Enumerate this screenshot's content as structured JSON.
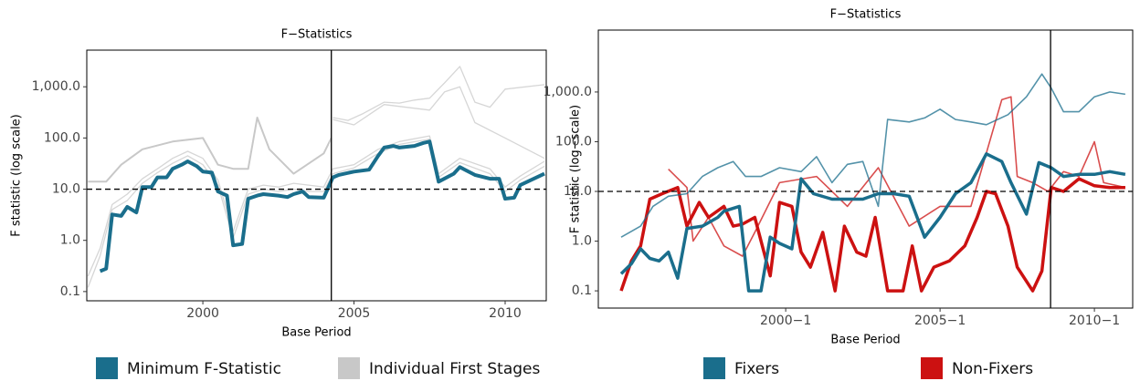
{
  "chart_data": [
    {
      "type": "line",
      "title": "F−Statistics",
      "xlabel": "Base Period",
      "ylabel": "F statistic (log scale)",
      "log_y": true,
      "xlim": [
        1996.16,
        2011.36
      ],
      "ylim": [
        0.066,
        5200
      ],
      "xticks": [
        2000,
        2005,
        2010
      ],
      "yticks": [
        0.1,
        {
          "value": 1,
          "label": "1.0"
        },
        {
          "value": 10,
          "label": "10.0"
        },
        {
          "value": 100,
          "label": "100.0"
        },
        {
          "value": 1000,
          "label": "1,000.0"
        }
      ],
      "vline": 2004.25,
      "hline": 10,
      "series": [
        {
          "name": "Minimum F-Statistic",
          "color": "#1a6e8c",
          "width": 4,
          "lines": [
            {
              "x": [
                1996.6,
                1996.8,
                1997.0,
                1997.3,
                1997.5,
                1997.8,
                1998.0,
                1998.3,
                1998.5,
                1998.8,
                1999.0,
                1999.3,
                1999.5,
                1999.8,
                2000.0,
                2000.3,
                2000.5,
                2000.8,
                2001.0,
                2001.3,
                2001.5,
                2001.8,
                2002.0,
                2002.5,
                2002.8,
                2003.0,
                2003.3,
                2003.5,
                2004.0,
                2004.3,
                2004.5,
                2005.0,
                2005.5,
                2005.8,
                2006.0,
                2006.3,
                2006.5,
                2007.0,
                2007.3,
                2007.5,
                2007.8,
                2008.3,
                2008.5,
                2009.0,
                2009.5,
                2009.8,
                2010.0,
                2010.3,
                2010.5,
                2011.3
              ],
              "values": [
                0.25,
                0.28,
                3.2,
                3.0,
                4.5,
                3.5,
                11,
                11,
                17,
                17,
                25,
                30,
                35,
                28,
                22,
                21,
                9,
                7.5,
                0.8,
                0.85,
                6.5,
                7.5,
                8,
                7.5,
                7,
                8,
                9,
                7,
                6.8,
                17,
                19,
                22,
                24,
                45,
                65,
                70,
                65,
                70,
                80,
                85,
                14,
                20,
                27,
                19,
                16,
                16,
                6.5,
                6.8,
                12,
                20
              ]
            }
          ]
        },
        {
          "name": "Individual First Stages",
          "color": "#c8c8c8",
          "width": 2,
          "lines": [
            {
              "x": [
                1996.2,
                1996.8,
                1997.3,
                1998.0,
                1999.0,
                2000.0,
                2000.5,
                2001.0,
                2001.5,
                2001.8,
                2002.2,
                2003.0,
                2004.0,
                2004.25
              ],
              "values": [
                14,
                14,
                30,
                60,
                85,
                100,
                30,
                25,
                25,
                250,
                60,
                20,
                50,
                100
              ]
            },
            {
              "x": [
                2004.3,
                2004.8,
                2005.3,
                2006.0,
                2006.5,
                2007.0,
                2007.5,
                2008.0,
                2008.5,
                2009.0,
                2009.5,
                2010.0,
                2011.3
              ],
              "values": [
                250,
                220,
                300,
                500,
                480,
                550,
                600,
                1200,
                2500,
                500,
                400,
                900,
                1100
              ]
            },
            {
              "x": [
                2004.3,
                2005.0,
                2006.0,
                2007.5,
                2008.0,
                2008.5,
                2009.0,
                2010.0,
                2011.3
              ],
              "values": [
                230,
                180,
                450,
                350,
                800,
                1000,
                200,
                100,
                40
              ]
            },
            {
              "x": [
                1996.2,
                1996.6,
                1997.0,
                1997.5,
                1998.0,
                1998.5,
                1999.0,
                1999.5,
                2000.0,
                2000.5,
                2001.0,
                2001.5,
                2002.0,
                2002.5,
                2003.0,
                2003.5,
                2004.0,
                2004.3,
                2005.0,
                2005.8,
                2006.5,
                2007.5,
                2007.8,
                2008.5,
                2009.5,
                2010.0,
                2010.5,
                2011.3
              ],
              "values": [
                0.2,
                0.7,
                5,
                8,
                16,
                25,
                40,
                55,
                40,
                15,
                1.5,
                10,
                12,
                11,
                13,
                12,
                11,
                25,
                30,
                60,
                85,
                110,
                20,
                40,
                25,
                11,
                18,
                35
              ]
            },
            {
              "x": [
                1996.2,
                1996.6,
                1997.0,
                1997.5,
                1998.0,
                1998.5,
                1999.0,
                1999.5,
                2000.0,
                2000.5,
                2001.0,
                2001.5,
                2002.0,
                2002.5,
                2003.0,
                2003.5,
                2004.0,
                2004.3,
                2005.0,
                2005.8,
                2006.5,
                2007.5,
                2007.8,
                2008.5,
                2009.5,
                2010.0,
                2010.5,
                2011.3
              ],
              "values": [
                0.12,
                0.5,
                4,
                6,
                13,
                21,
                32,
                45,
                30,
                12,
                1.1,
                8,
                10,
                9,
                10,
                9,
                9,
                20,
                26,
                50,
                75,
                95,
                17,
                33,
                20,
                9,
                15,
                28
              ]
            }
          ]
        }
      ],
      "legend": "bottom"
    },
    {
      "type": "line",
      "title": "F−Statistics",
      "xlabel": "Base Period",
      "ylabel": "F statistic (log−scale)",
      "log_y": true,
      "xlim": [
        1993.93,
        2011.24
      ],
      "ylim": [
        0.045,
        17600
      ],
      "xticks": [
        {
          "value": 2000,
          "label": "2000−1"
        },
        {
          "value": 2005,
          "label": "2005−1"
        },
        {
          "value": 2010,
          "label": "2010−1"
        }
      ],
      "yticks": [
        0.1,
        {
          "value": 1,
          "label": "1.0"
        },
        {
          "value": 10,
          "label": "10.0"
        },
        {
          "value": 100,
          "label": "100.0"
        },
        {
          "value": 1000,
          "label": "1,000.0"
        }
      ],
      "vline": 2008.58,
      "hline": 10,
      "series": [
        {
          "name": "Fixers",
          "color": "#1a6e8c",
          "width": 3.5,
          "lines": [
            {
              "x": [
                1994.67,
                1995.0,
                1995.3,
                1995.6,
                1995.9,
                1996.2,
                1996.5,
                1996.8,
                1997.3,
                1997.8,
                1998.0,
                1998.5,
                1998.8,
                1999.2,
                1999.5,
                1999.8,
                2000.2,
                2000.5,
                2000.9,
                2001.5,
                2002.5,
                2003.0,
                2003.5,
                2004.0,
                2004.5,
                2005.0,
                2005.5,
                2006.0,
                2006.5,
                2007.0,
                2007.3,
                2007.8,
                2008.2,
                2008.6,
                2009.0,
                2009.5,
                2010.0,
                2010.5,
                2011.0
              ],
              "values": [
                0.22,
                0.35,
                0.7,
                0.45,
                0.4,
                0.6,
                0.18,
                1.8,
                2,
                3,
                4,
                5,
                0.1,
                0.1,
                1.2,
                0.9,
                0.7,
                18,
                9,
                7,
                7,
                9,
                9,
                8,
                1.2,
                3,
                9,
                15,
                57,
                40,
                15,
                3.5,
                38,
                30,
                20,
                22,
                22,
                25,
                22
              ]
            },
            {
              "x": [
                1994.67,
                1995.3,
                1995.7,
                1996.2,
                1996.8,
                1997.3,
                1997.8,
                1998.3,
                1998.7,
                1999.2,
                1999.8,
                2000.5,
                2001.0,
                2001.5,
                2002.0,
                2002.5,
                2003.0,
                2003.3,
                2004.0,
                2004.5,
                2005.0,
                2005.5,
                2006.0,
                2006.5,
                2007.2,
                2007.8,
                2008.3,
                2008.6,
                2009.0,
                2009.5,
                2010.0,
                2010.5,
                2011.0
              ],
              "values": [
                1.2,
                2,
                5,
                8,
                9,
                20,
                30,
                40,
                20,
                20,
                30,
                25,
                50,
                15,
                35,
                40,
                5,
                280,
                250,
                300,
                450,
                280,
                250,
                220,
                350,
                800,
                2300,
                1200,
                400,
                400,
                800,
                1000,
                900
              ]
            }
          ]
        },
        {
          "name": "Non-Fixers",
          "color": "#cc1111",
          "width": 3.5,
          "lines": [
            {
              "x": [
                1994.67,
                1995.0,
                1995.3,
                1995.6,
                1996.0,
                1996.5,
                1996.8,
                1997.2,
                1997.5,
                1998.0,
                1998.3,
                1998.6,
                1999.0,
                1999.5,
                1999.8,
                2000.2,
                2000.5,
                2000.8,
                2001.2,
                2001.6,
                2001.9,
                2002.3,
                2002.6,
                2002.9,
                2003.3,
                2003.8,
                2004.1,
                2004.4,
                2004.8,
                2005.3,
                2005.8,
                2006.2,
                2006.5,
                2006.8,
                2007.2,
                2007.5,
                2008.0,
                2008.3,
                2008.6,
                2009.0,
                2009.5,
                2010.0,
                2010.5,
                2011.0
              ],
              "values": [
                0.1,
                0.4,
                0.8,
                7,
                9,
                12,
                2,
                6,
                3,
                5,
                2,
                2.2,
                3,
                0.2,
                6,
                5,
                0.6,
                0.3,
                1.5,
                0.1,
                2,
                0.6,
                0.5,
                3,
                0.1,
                0.1,
                0.8,
                0.1,
                0.3,
                0.4,
                0.8,
                3,
                10,
                9,
                2,
                0.3,
                0.1,
                0.25,
                12,
                10,
                18,
                13,
                12,
                12
              ]
            },
            {
              "x": [
                1996.2,
                1996.8,
                1997.0,
                1997.5,
                1998.0,
                1998.6,
                1999.0,
                1999.8,
                2001.0,
                2002.0,
                2003.0,
                2004.0,
                2005.0,
                2006.0,
                2007.0,
                2007.3,
                2007.5,
                2008.0,
                2008.5,
                2009.0,
                2009.5,
                2010.0,
                2010.3,
                2011.0
              ],
              "values": [
                28,
                12,
                1,
                3,
                0.8,
                0.5,
                1.5,
                15,
                20,
                5,
                30,
                2,
                5,
                5,
                700,
                800,
                20,
                15,
                10,
                25,
                20,
                100,
                15,
                12
              ]
            }
          ]
        }
      ],
      "legend": "bottom"
    }
  ]
}
